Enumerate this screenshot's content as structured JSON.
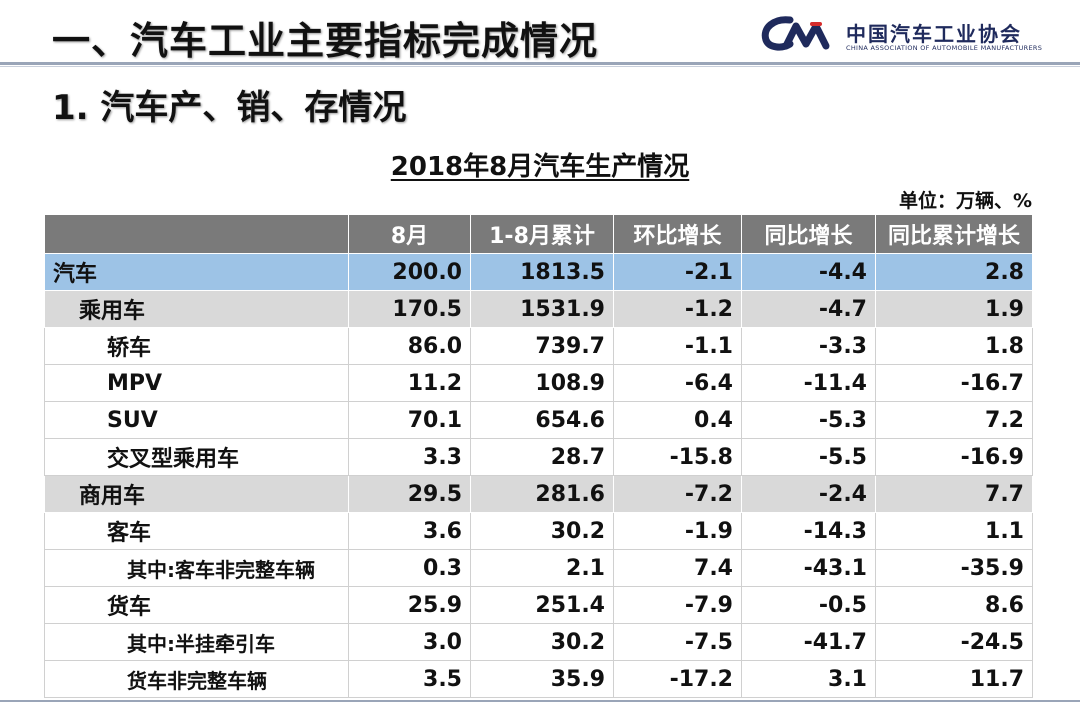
{
  "header": {
    "title": "一、汽车工业主要指标完成情况",
    "logo_cn": "中国汽车工业协会",
    "logo_en": "CHINA ASSOCIATION OF AUTOMOBILE MANUFACTURERS"
  },
  "section_title": "1. 汽车产、销、存情况",
  "table_title": "2018年8月汽车生产情况",
  "unit": "单位：万辆、%",
  "colors": {
    "header_bg": "#7a7a7a",
    "total_row": "#9dc3e6",
    "category_row": "#d9d9d9",
    "brand": "#1f2a5c"
  },
  "table": {
    "columns": [
      "",
      "8月",
      "1-8月累计",
      "环比增长",
      "同比增长",
      "同比累计增长"
    ],
    "rows": [
      {
        "name": "汽车",
        "level": 0,
        "values": [
          "200.0",
          "1813.5",
          "-2.1",
          "-4.4",
          "2.8"
        ]
      },
      {
        "name": "乘用车",
        "level": 1,
        "values": [
          "170.5",
          "1531.9",
          "-1.2",
          "-4.7",
          "1.9"
        ]
      },
      {
        "name": "轿车",
        "level": 2,
        "values": [
          "86.0",
          "739.7",
          "-1.1",
          "-3.3",
          "1.8"
        ]
      },
      {
        "name": "MPV",
        "level": 2,
        "values": [
          "11.2",
          "108.9",
          "-6.4",
          "-11.4",
          "-16.7"
        ]
      },
      {
        "name": "SUV",
        "level": 2,
        "values": [
          "70.1",
          "654.6",
          "0.4",
          "-5.3",
          "7.2"
        ]
      },
      {
        "name": "交叉型乘用车",
        "level": 2,
        "values": [
          "3.3",
          "28.7",
          "-15.8",
          "-5.5",
          "-16.9"
        ]
      },
      {
        "name": "商用车",
        "level": 1,
        "values": [
          "29.5",
          "281.6",
          "-7.2",
          "-2.4",
          "7.7"
        ]
      },
      {
        "name": "客车",
        "level": 2,
        "values": [
          "3.6",
          "30.2",
          "-1.9",
          "-14.3",
          "1.1"
        ]
      },
      {
        "name": "其中:客车非完整车辆",
        "level": 3,
        "values": [
          "0.3",
          "2.1",
          "7.4",
          "-43.1",
          "-35.9"
        ]
      },
      {
        "name": "货车",
        "level": 2,
        "values": [
          "25.9",
          "251.4",
          "-7.9",
          "-0.5",
          "8.6"
        ]
      },
      {
        "name": "其中:半挂牵引车",
        "level": 3,
        "values": [
          "3.0",
          "30.2",
          "-7.5",
          "-41.7",
          "-24.5"
        ]
      },
      {
        "name": "货车非完整车辆",
        "level": 3,
        "values": [
          "3.5",
          "35.9",
          "-17.2",
          "3.1",
          "11.7"
        ]
      }
    ]
  }
}
